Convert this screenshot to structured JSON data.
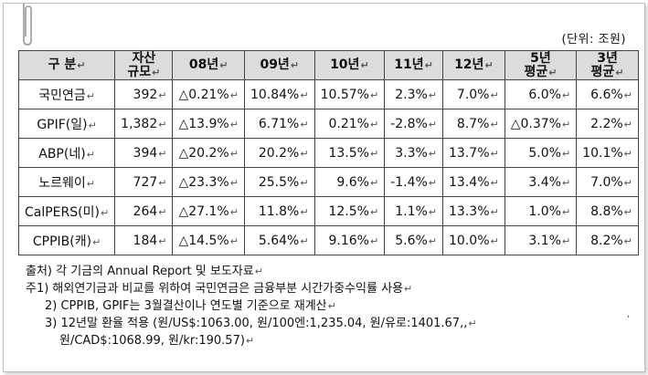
{
  "unit_label": "(단위: 조원)",
  "table": {
    "headers": [
      [
        "구  분"
      ],
      [
        "자산",
        "규모"
      ],
      [
        "08년"
      ],
      [
        "09년"
      ],
      [
        "10년"
      ],
      [
        "11년"
      ],
      [
        "12년"
      ],
      [
        "5년",
        "평균"
      ],
      [
        "3년",
        "평균"
      ]
    ],
    "rows": [
      {
        "name": "국민연금",
        "assets": "392",
        "y08": "△0.21%",
        "y09": "10.84%",
        "y10": "10.57%",
        "y11": "2.3%",
        "y12": "7.0%",
        "avg5": "6.0%",
        "avg3": "6.6%"
      },
      {
        "name": "GPIF(일)",
        "assets": "1,382",
        "y08": "△13.9%",
        "y09": "6.71%",
        "y10": "0.21%",
        "y11": "-2.8%",
        "y12": "8.7%",
        "avg5": "△0.37%",
        "avg3": "2.2%"
      },
      {
        "name": "ABP(네)",
        "assets": "394",
        "y08": "△20.2%",
        "y09": "20.2%",
        "y10": "13.5%",
        "y11": "3.3%",
        "y12": "13.7%",
        "avg5": "5.0%",
        "avg3": "10.1%"
      },
      {
        "name": "노르웨이",
        "assets": "727",
        "y08": "△23.3%",
        "y09": "25.5%",
        "y10": "9.6%",
        "y11": "-1.4%",
        "y12": "13.4%",
        "avg5": "3.4%",
        "avg3": "7.0%"
      },
      {
        "name": "CalPERS(미)",
        "assets": "264",
        "y08": "△27.1%",
        "y09": "11.8%",
        "y10": "12.5%",
        "y11": "1.1%",
        "y12": "13.3%",
        "avg5": "1.0%",
        "avg3": "8.8%"
      },
      {
        "name": "CPPIB(캐)",
        "assets": "184",
        "y08": "△14.5%",
        "y09": "5.64%",
        "y10": "9.16%",
        "y11": "5.6%",
        "y12": "10.0%",
        "avg5": "3.1%",
        "avg3": "8.2%"
      }
    ]
  },
  "notes": {
    "source": "출처) 각 기금의 Annual Report 및 보도자료",
    "note1": "주1) 해외연기금과 비교를 위하여 국민연금은 금융부분 시간가중수익률 사용",
    "note2": "2) CPPIB, GPIF는 3월결산이나 연도별 기준으로 재계산",
    "note3": "3) 12년말 환율 적용 (원/US$:1063.00, 원/100엔:1,235.04, 원/유로:1401.67,,",
    "note3b": "원/CAD$:1068.99, 원/kr:190.57)",
    "dot": ","
  }
}
